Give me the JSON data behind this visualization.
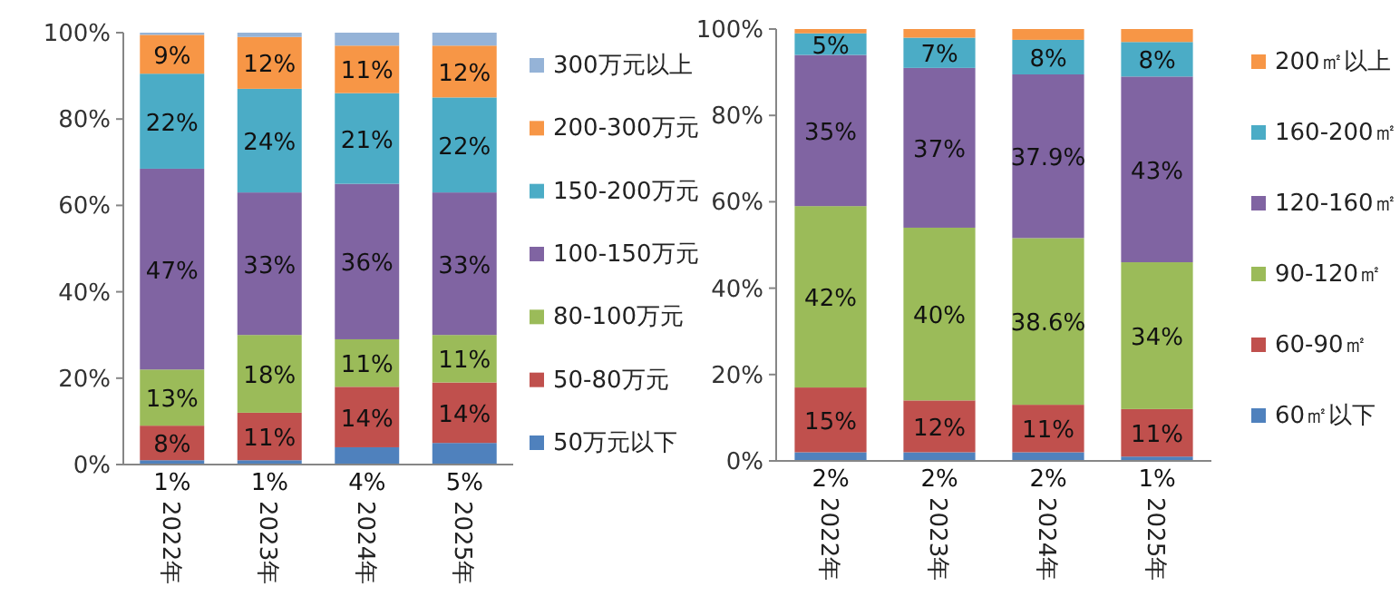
{
  "chart_data": [
    {
      "type": "bar",
      "stacked": true,
      "categories": [
        "2022年",
        "2023年",
        "2024年",
        "2025年"
      ],
      "ylim": [
        0,
        100
      ],
      "yticks": [
        {
          "value": 0,
          "label": "0%"
        },
        {
          "value": 20,
          "label": "20%"
        },
        {
          "value": 40,
          "label": "40%"
        },
        {
          "value": 60,
          "label": "60%"
        },
        {
          "value": 80,
          "label": "80%"
        },
        {
          "value": 100,
          "label": "100%"
        }
      ],
      "legend": "right",
      "grid": false,
      "series": [
        {
          "name": "50万元以下",
          "color": "#4f81bd",
          "values": [
            1,
            1,
            4,
            5
          ],
          "value_labels": [
            "1%",
            "1%",
            "4%",
            "5%"
          ]
        },
        {
          "name": "50-80万元",
          "color": "#c0504d",
          "values": [
            8,
            11,
            14,
            14
          ],
          "value_labels": [
            "8%",
            "11%",
            "14%",
            "14%"
          ]
        },
        {
          "name": "80-100万元",
          "color": "#9bbb59",
          "values": [
            13,
            18,
            11,
            11
          ],
          "value_labels": [
            "13%",
            "18%",
            "11%",
            "11%"
          ]
        },
        {
          "name": "100-150万元",
          "color": "#8064a2",
          "values": [
            46.5,
            33,
            36,
            33
          ],
          "value_labels": [
            "47%",
            "33%",
            "36%",
            "33%"
          ]
        },
        {
          "name": "150-200万元",
          "color": "#4bacc6",
          "values": [
            22,
            24,
            21,
            22
          ],
          "value_labels": [
            "22%",
            "24%",
            "21%",
            "22%"
          ]
        },
        {
          "name": "200-300万元",
          "color": "#f79646",
          "values": [
            9,
            12,
            11,
            12
          ],
          "value_labels": [
            "9%",
            "12%",
            "11%",
            "12%"
          ]
        },
        {
          "name": "300万元以上",
          "color": "#95b3d7",
          "values": [
            0.5,
            1,
            3,
            3
          ]
        }
      ]
    },
    {
      "type": "bar",
      "stacked": true,
      "categories": [
        "2022年",
        "2023年",
        "2024年",
        "2025年"
      ],
      "ylim": [
        0,
        100
      ],
      "yticks": [
        {
          "value": 0,
          "label": "0%"
        },
        {
          "value": 20,
          "label": "20%"
        },
        {
          "value": 40,
          "label": "40%"
        },
        {
          "value": 60,
          "label": "60%"
        },
        {
          "value": 80,
          "label": "80%"
        },
        {
          "value": 100,
          "label": "100%"
        }
      ],
      "legend": "right",
      "grid": false,
      "series": [
        {
          "name": "60㎡以下",
          "color": "#4f81bd",
          "values": [
            2,
            2,
            2,
            1
          ],
          "value_labels": [
            "2%",
            "2%",
            "2%",
            "1%"
          ]
        },
        {
          "name": "60-90㎡",
          "color": "#c0504d",
          "values": [
            15,
            12,
            11,
            11
          ],
          "value_labels": [
            "15%",
            "12%",
            "11%",
            "11%"
          ]
        },
        {
          "name": "90-120㎡",
          "color": "#9bbb59",
          "values": [
            42,
            40,
            38.6,
            34
          ],
          "value_labels": [
            "42%",
            "40%",
            "38.6%",
            "34%"
          ]
        },
        {
          "name": "120-160㎡",
          "color": "#8064a2",
          "values": [
            35,
            37,
            37.9,
            43
          ],
          "value_labels": [
            "35%",
            "37%",
            "37.9%",
            "43%"
          ]
        },
        {
          "name": "160-200㎡",
          "color": "#4bacc6",
          "values": [
            5,
            7,
            8,
            8
          ],
          "value_labels": [
            "5%",
            "7%",
            "8%",
            "8%"
          ]
        },
        {
          "name": "200㎡以上",
          "color": "#f79646",
          "values": [
            1,
            2,
            2.5,
            3
          ]
        }
      ]
    }
  ]
}
